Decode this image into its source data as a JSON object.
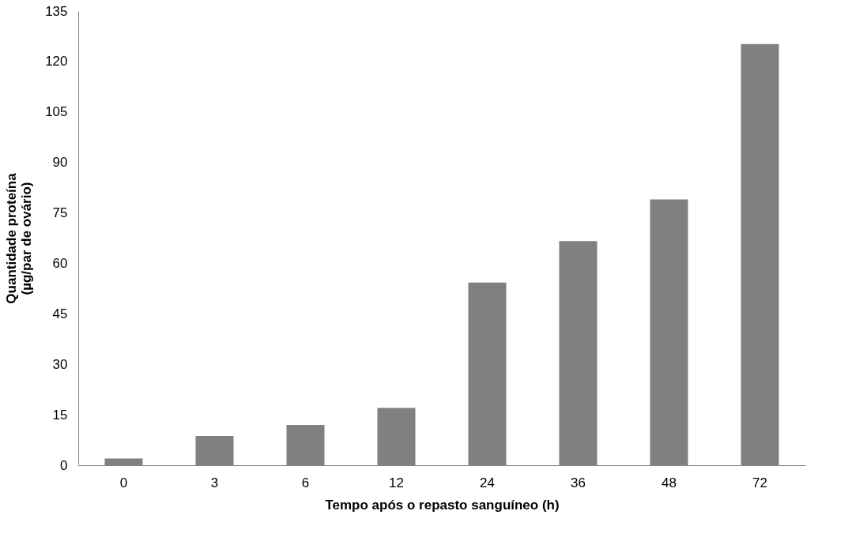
{
  "chart_data": {
    "type": "bar",
    "xlabel": "Tempo após o repasto sanguíneo (h)",
    "ylabel": "Quantidade proteína\n(µg/par de ovário)",
    "categories": [
      "0",
      "3",
      "6",
      "12",
      "24",
      "36",
      "48",
      "72"
    ],
    "values": [
      2,
      8.7,
      12,
      17,
      54.3,
      66.6,
      79,
      125.2
    ],
    "color": "#808080",
    "ylim": [
      0,
      135
    ],
    "yticks": [
      0,
      15,
      30,
      45,
      60,
      75,
      90,
      105,
      120,
      135
    ],
    "grid": false
  }
}
